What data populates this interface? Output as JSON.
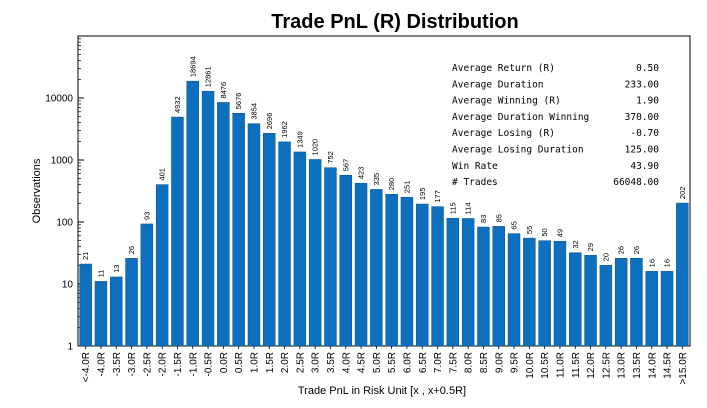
{
  "chart_data": {
    "type": "bar",
    "title": "Trade PnL (R) Distribution",
    "xlabel": "Trade PnL in Risk Unit [x , x+0.5R]",
    "ylabel": "Observations",
    "yscale": "log",
    "ylim": [
      1,
      100000
    ],
    "y_tick_labels": [
      "1",
      "10",
      "100",
      "1000",
      "10000"
    ],
    "grid": false,
    "bar_color": "#0d6fbe",
    "categories": [
      "<-4.0R",
      "-4.0R",
      "-3.5R",
      "-3.0R",
      "-2.5R",
      "-2.0R",
      "-1.5R",
      "-1.0R",
      "-0.5R",
      "0.0R",
      "0.5R",
      "1.0R",
      "1.5R",
      "2.0R",
      "2.5R",
      "3.0R",
      "3.5R",
      "4.0R",
      "4.5R",
      "5.0R",
      "5.5R",
      "6.0R",
      "6.5R",
      "7.0R",
      "7.5R",
      "8.0R",
      "8.5R",
      "9.0R",
      "9.5R",
      "10.0R",
      "10.5R",
      "11.0R",
      "11.5R",
      "12.0R",
      "12.5R",
      "13.0R",
      "13.5R",
      "14.0R",
      "14.5R",
      ">15.0R"
    ],
    "values": [
      21,
      11,
      13,
      26,
      93,
      401,
      4932,
      18694,
      12861,
      8476,
      5676,
      3854,
      2696,
      1962,
      1349,
      1020,
      752,
      567,
      423,
      335,
      280,
      251,
      195,
      177,
      115,
      114,
      83,
      85,
      65,
      55,
      50,
      49,
      32,
      29,
      20,
      26,
      26,
      16,
      16,
      202
    ]
  },
  "stats": [
    {
      "label": "Average Return (R)",
      "value": "0.50"
    },
    {
      "label": "Average Duration",
      "value": "233.00"
    },
    {
      "label": "Average Winning (R)",
      "value": "1.90"
    },
    {
      "label": "Average Duration Winning",
      "value": "370.00"
    },
    {
      "label": "Average Losing (R)",
      "value": "-0.70"
    },
    {
      "label": "Average Losing Duration",
      "value": "125.00"
    },
    {
      "label": "Win Rate",
      "value": "43.90"
    },
    {
      "label": "# Trades",
      "value": "66048.00"
    }
  ]
}
